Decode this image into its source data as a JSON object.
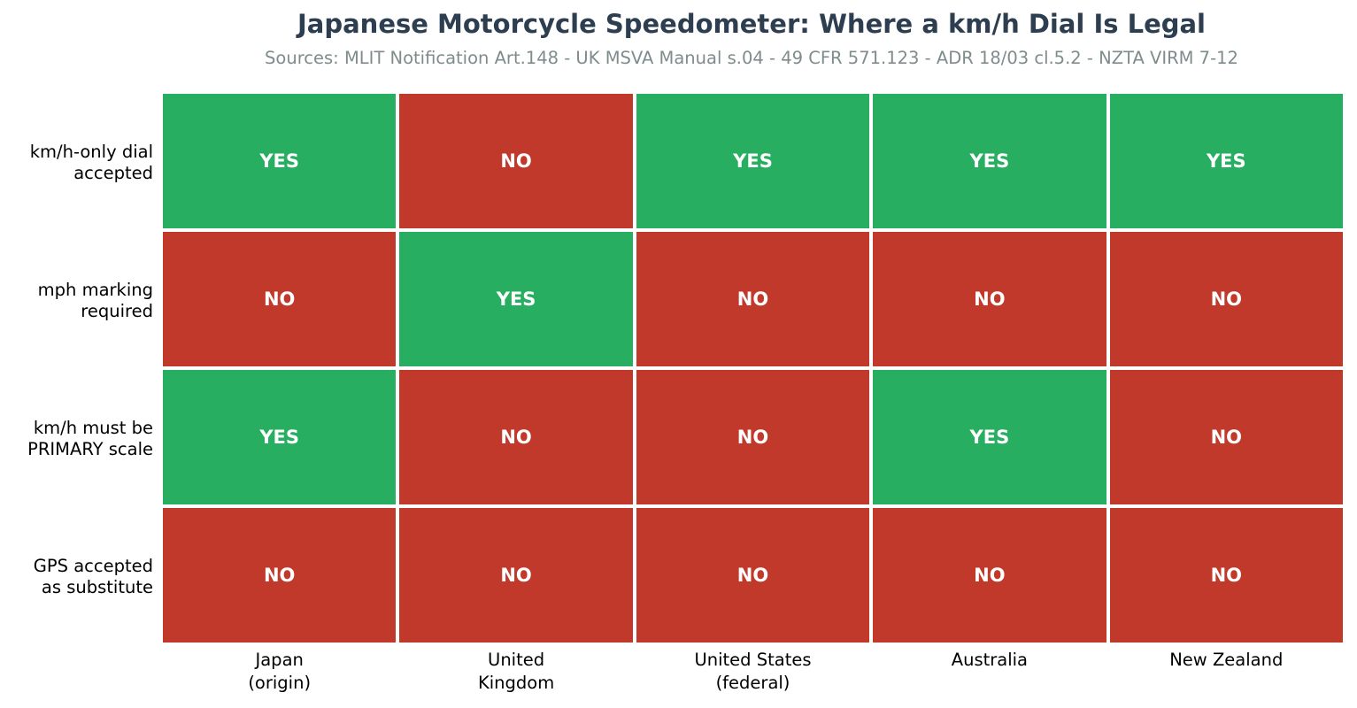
{
  "chart_data": {
    "type": "heatmap",
    "title": "Japanese Motorcycle Speedometer: Where a km/h Dial Is Legal",
    "subtitle": "Sources: MLIT Notification Art.148 - UK MSVA Manual s.04 - 49 CFR 571.123 - ADR 18/03 cl.5.2 - NZTA VIRM 7-12",
    "columns": [
      [
        "Japan",
        "(origin)"
      ],
      [
        "United",
        "Kingdom"
      ],
      [
        "United States",
        "(federal)"
      ],
      [
        "Australia"
      ],
      [
        "New Zealand"
      ]
    ],
    "rows": [
      [
        "km/h-only dial",
        "accepted"
      ],
      [
        "mph marking",
        "required"
      ],
      [
        "km/h must be",
        "PRIMARY scale"
      ],
      [
        "GPS accepted",
        "as substitute"
      ]
    ],
    "values": [
      [
        "YES",
        "NO",
        "YES",
        "YES",
        "YES"
      ],
      [
        "NO",
        "YES",
        "NO",
        "NO",
        "NO"
      ],
      [
        "YES",
        "NO",
        "NO",
        "YES",
        "NO"
      ],
      [
        "NO",
        "NO",
        "NO",
        "NO",
        "NO"
      ]
    ],
    "colors": {
      "YES": "#27ae60",
      "NO": "#c0392b"
    }
  }
}
